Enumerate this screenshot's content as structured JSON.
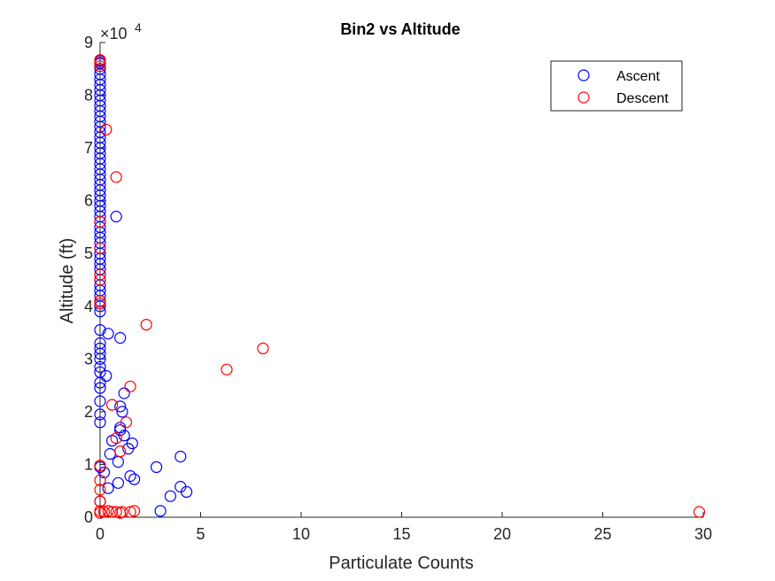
{
  "chart_data": {
    "type": "scatter",
    "title": "Bin2 vs Altitude",
    "xlabel": "Particulate Counts",
    "ylabel": "Altitude (ft)",
    "xlim": [
      0,
      30
    ],
    "ylim": [
      0,
      90000
    ],
    "x_ticks": [
      "0",
      "5",
      "10",
      "15",
      "20",
      "25",
      "30"
    ],
    "y_ticks": [
      "0",
      "1",
      "2",
      "3",
      "4",
      "5",
      "6",
      "7",
      "8",
      "9"
    ],
    "y_tick_values": [
      0,
      10000,
      20000,
      30000,
      40000,
      50000,
      60000,
      70000,
      80000,
      90000
    ],
    "y_exponent": {
      "base": "×10",
      "power": "4"
    },
    "grid": false,
    "legend": {
      "position": "top-right"
    },
    "series": [
      {
        "name": "Ascent",
        "color": "#0000ff",
        "marker": "circle-open",
        "points": [
          [
            0,
            86500
          ],
          [
            0,
            86000
          ],
          [
            0,
            85000
          ],
          [
            0,
            84000
          ],
          [
            0,
            83000
          ],
          [
            0,
            82000
          ],
          [
            0,
            81000
          ],
          [
            0,
            80000
          ],
          [
            0,
            79000
          ],
          [
            0,
            78000
          ],
          [
            0,
            77000
          ],
          [
            0,
            76000
          ],
          [
            0,
            75000
          ],
          [
            0,
            74000
          ],
          [
            0,
            73000
          ],
          [
            0,
            72000
          ],
          [
            0,
            71000
          ],
          [
            0,
            70000
          ],
          [
            0,
            69000
          ],
          [
            0,
            68000
          ],
          [
            0,
            67000
          ],
          [
            0,
            66000
          ],
          [
            0,
            65000
          ],
          [
            0,
            64000
          ],
          [
            0,
            63000
          ],
          [
            0,
            62000
          ],
          [
            0,
            61000
          ],
          [
            0,
            60000
          ],
          [
            0,
            59000
          ],
          [
            0,
            58000
          ],
          [
            0,
            57000
          ],
          [
            0,
            56000
          ],
          [
            0,
            55000
          ],
          [
            0,
            54000
          ],
          [
            0,
            53000
          ],
          [
            0,
            52000
          ],
          [
            0,
            51000
          ],
          [
            0,
            50000
          ],
          [
            0,
            49000
          ],
          [
            0,
            48000
          ],
          [
            0,
            47000
          ],
          [
            0,
            46000
          ],
          [
            0,
            45000
          ],
          [
            0,
            44000
          ],
          [
            0,
            43000
          ],
          [
            0,
            42000
          ],
          [
            0,
            41000
          ],
          [
            0,
            40000
          ],
          [
            0,
            39000
          ],
          [
            0,
            35500
          ],
          [
            0,
            33000
          ],
          [
            0,
            32000
          ],
          [
            0,
            31000
          ],
          [
            0,
            30000
          ],
          [
            0,
            28500
          ],
          [
            0,
            27500
          ],
          [
            0,
            25500
          ],
          [
            0,
            24500
          ],
          [
            0,
            22000
          ],
          [
            0,
            19500
          ],
          [
            0,
            18000
          ],
          [
            0,
            9500
          ],
          [
            0,
            3000
          ],
          [
            0.8,
            57000
          ],
          [
            0.4,
            34800
          ],
          [
            1.0,
            34000
          ],
          [
            0.3,
            26800
          ],
          [
            1.2,
            23500
          ],
          [
            1.0,
            21000
          ],
          [
            1.1,
            20000
          ],
          [
            1.0,
            17000
          ],
          [
            1.0,
            16500
          ],
          [
            1.2,
            15500
          ],
          [
            0.6,
            14500
          ],
          [
            1.6,
            14000
          ],
          [
            1.4,
            13000
          ],
          [
            0.5,
            12000
          ],
          [
            0.9,
            10500
          ],
          [
            2.8,
            9500
          ],
          [
            0.2,
            8500
          ],
          [
            1.5,
            7800
          ],
          [
            1.7,
            7200
          ],
          [
            0.9,
            6500
          ],
          [
            0.4,
            5500
          ],
          [
            4.0,
            11500
          ],
          [
            4.0,
            5800
          ],
          [
            4.3,
            4800
          ],
          [
            3.5,
            4000
          ],
          [
            3.0,
            1200
          ]
        ]
      },
      {
        "name": "Descent",
        "color": "#ff0000",
        "marker": "circle-open",
        "points": [
          [
            0,
            86700
          ],
          [
            0,
            86200
          ],
          [
            0,
            85500
          ],
          [
            0.3,
            73500
          ],
          [
            0.8,
            64500
          ],
          [
            0,
            56000
          ],
          [
            0,
            51000
          ],
          [
            0,
            46000
          ],
          [
            0,
            45000
          ],
          [
            0,
            41000
          ],
          [
            0,
            40500
          ],
          [
            2.3,
            36500
          ],
          [
            8.1,
            32000
          ],
          [
            6.3,
            28000
          ],
          [
            1.5,
            24800
          ],
          [
            0.6,
            21300
          ],
          [
            1.3,
            18000
          ],
          [
            0.8,
            15000
          ],
          [
            1.0,
            12500
          ],
          [
            0,
            9800
          ],
          [
            0,
            7000
          ],
          [
            0,
            5200
          ],
          [
            0,
            3000
          ],
          [
            0,
            1200
          ],
          [
            0,
            800
          ],
          [
            0.2,
            1000
          ],
          [
            0.4,
            1200
          ],
          [
            0.6,
            1000
          ],
          [
            0.8,
            1000
          ],
          [
            1.0,
            800
          ],
          [
            1.1,
            1000
          ],
          [
            1.5,
            1000
          ],
          [
            1.7,
            1200
          ],
          [
            29.8,
            1000
          ]
        ]
      }
    ]
  }
}
